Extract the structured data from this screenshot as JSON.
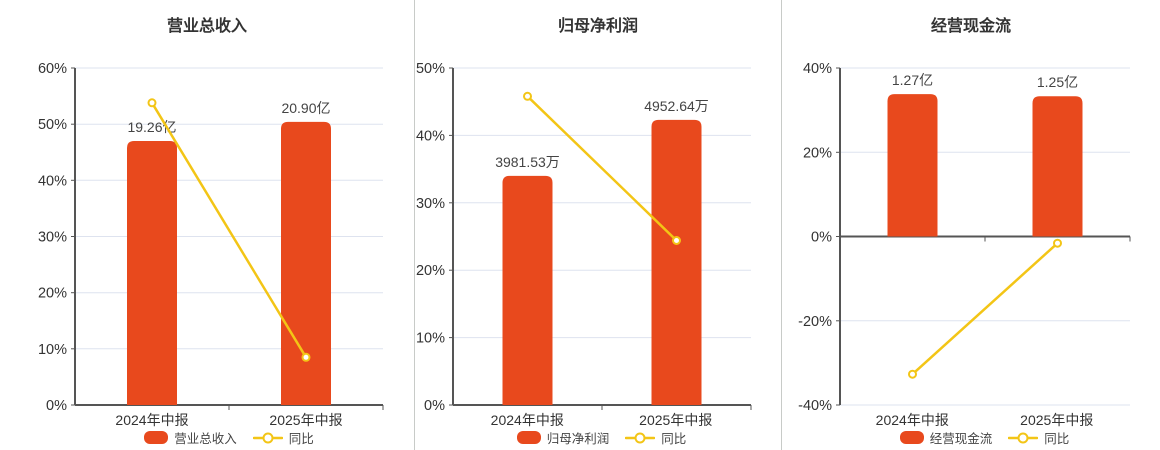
{
  "colors": {
    "background": "#ffffff",
    "bar": "#E8491D",
    "line": "#F3C516",
    "axis": "#555555",
    "grid": "#DEE3EF",
    "title_text": "#333333",
    "tick_text": "#333333",
    "value_text": "#444444",
    "divider": "#C8CBC8"
  },
  "chart_data": [
    {
      "type": "bar",
      "title": "营业总收入",
      "categories": [
        "2024年中报",
        "2025年中报"
      ],
      "series": [
        {
          "name": "营业总收入",
          "type": "bar",
          "unit": "亿",
          "values": [
            19.26,
            20.9
          ],
          "value_labels": [
            "19.26亿",
            "20.90亿"
          ],
          "bar_top_pct": [
            47.0,
            50.4
          ]
        },
        {
          "name": "同比",
          "type": "line",
          "values_pct": [
            53.8,
            8.5
          ]
        }
      ],
      "ylim": [
        0,
        60
      ],
      "yticks": [
        "60%",
        "50%",
        "40%",
        "30%",
        "20%",
        "10%",
        "0%"
      ],
      "grid": "on",
      "legend_position": "bottom"
    },
    {
      "type": "bar",
      "title": "归母净利润",
      "categories": [
        "2024年中报",
        "2025年中报"
      ],
      "series": [
        {
          "name": "归母净利润",
          "type": "bar",
          "unit": "万",
          "values": [
            3981.53,
            4952.64
          ],
          "value_labels": [
            "3981.53万",
            "4952.64万"
          ],
          "bar_top_pct": [
            34.0,
            42.3
          ]
        },
        {
          "name": "同比",
          "type": "line",
          "values_pct": [
            45.8,
            24.4
          ]
        }
      ],
      "ylim": [
        0,
        50
      ],
      "yticks": [
        "50%",
        "40%",
        "30%",
        "20%",
        "10%",
        "0%"
      ],
      "grid": "on",
      "legend_position": "bottom"
    },
    {
      "type": "bar",
      "title": "经营现金流",
      "categories": [
        "2024年中报",
        "2025年中报"
      ],
      "series": [
        {
          "name": "经营现金流",
          "type": "bar",
          "unit": "亿",
          "values": [
            1.27,
            1.25
          ],
          "value_labels": [
            "1.27亿",
            "1.25亿"
          ],
          "bar_top_pct": [
            33.8,
            33.3
          ]
        },
        {
          "name": "同比",
          "type": "line",
          "values_pct": [
            -32.7,
            -1.6
          ]
        }
      ],
      "ylim": [
        -40,
        40
      ],
      "yticks": [
        "40%",
        "20%",
        "0%",
        "-20%",
        "-40%"
      ],
      "grid": "on",
      "legend_position": "bottom"
    }
  ]
}
